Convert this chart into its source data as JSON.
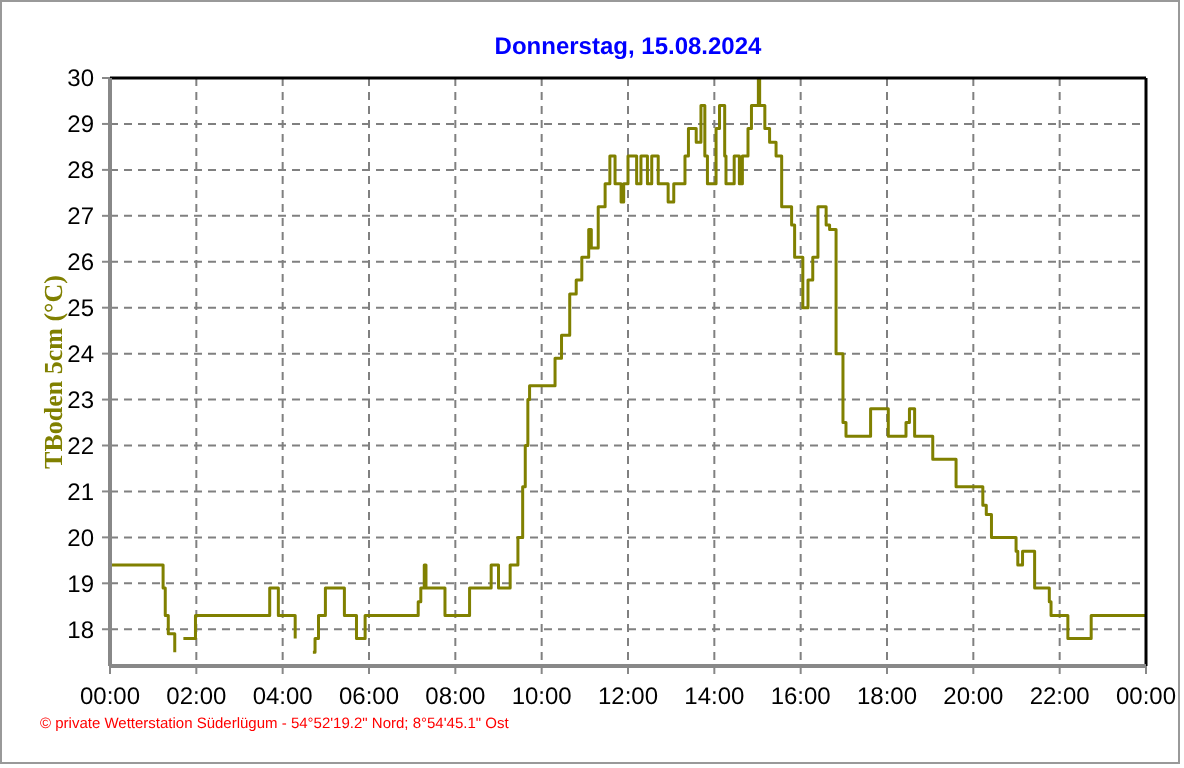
{
  "chart_data": {
    "type": "step",
    "title": "Donnerstag, 15.08.2024",
    "ylabel": "TBoden 5cm (°C)",
    "annotations": [
      "© private Wetterstation Süderlügum - 54°52'19.2\" Nord; 8°54'45.1\" Ost"
    ],
    "xlim": [
      0,
      24
    ],
    "xticks": [
      {
        "value": 0,
        "label": "00:00"
      },
      {
        "value": 2,
        "label": "02:00"
      },
      {
        "value": 4,
        "label": "04:00"
      },
      {
        "value": 6,
        "label": "06:00"
      },
      {
        "value": 8,
        "label": "08:00"
      },
      {
        "value": 10,
        "label": "10:00"
      },
      {
        "value": 12,
        "label": "12:00"
      },
      {
        "value": 14,
        "label": "14:00"
      },
      {
        "value": 16,
        "label": "16:00"
      },
      {
        "value": 18,
        "label": "18:00"
      },
      {
        "value": 20,
        "label": "20:00"
      },
      {
        "value": 22,
        "label": "22:00"
      },
      {
        "value": 24,
        "label": "00:00"
      }
    ],
    "ylim": [
      17.2,
      30
    ],
    "yticks": [
      18,
      19,
      20,
      21,
      22,
      23,
      24,
      25,
      26,
      27,
      28,
      29,
      30
    ],
    "grid": true,
    "line_style": "solid",
    "series": [
      {
        "color": "#808000",
        "x": [
          0,
          1.23,
          1.28,
          1.35,
          1.5,
          1.6,
          1.7,
          1.98,
          3.7,
          3.9,
          4.29,
          4.55,
          4.7,
          4.75,
          4.83,
          4.99,
          5.43,
          5.71,
          5.91,
          7.14,
          7.2,
          7.28,
          7.32,
          7.76,
          8.33,
          8.83,
          9.0,
          9.27,
          9.45,
          9.56,
          9.62,
          9.68,
          9.72,
          10.31,
          10.46,
          10.65,
          10.8,
          10.93,
          11.09,
          11.15,
          11.31,
          11.47,
          11.58,
          11.7,
          11.84,
          11.9,
          12.0,
          12.2,
          12.3,
          12.45,
          12.55,
          12.7,
          12.93,
          13.06,
          13.32,
          13.4,
          13.58,
          13.69,
          13.78,
          13.84,
          14.04,
          14.12,
          14.24,
          14.27,
          14.46,
          14.58,
          14.65,
          14.78,
          14.86,
          15.02,
          15.05,
          15.17,
          15.28,
          15.43,
          15.56,
          15.79,
          15.86,
          16.05,
          16.17,
          16.28,
          16.4,
          16.59,
          16.67,
          16.82,
          16.98,
          17.05,
          17.62,
          18.03,
          18.44,
          18.52,
          18.64,
          19.06,
          19.6,
          20.22,
          20.3,
          20.42,
          20.99,
          21.03,
          21.14,
          21.42,
          21.76,
          21.8,
          22.19,
          22.73,
          24
        ],
        "values": [
          19.4,
          18.9,
          18.3,
          17.9,
          17.5,
          null,
          17.8,
          18.3,
          18.9,
          18.3,
          17.8,
          null,
          17.5,
          17.8,
          18.3,
          18.9,
          18.3,
          17.8,
          18.3,
          18.6,
          18.9,
          19.4,
          18.9,
          18.3,
          18.9,
          19.4,
          18.9,
          19.4,
          20.0,
          21.1,
          22.0,
          23.0,
          23.3,
          23.9,
          24.4,
          25.3,
          25.6,
          26.1,
          26.7,
          26.3,
          27.2,
          27.7,
          28.3,
          27.7,
          27.3,
          27.7,
          28.3,
          27.7,
          28.3,
          27.7,
          28.3,
          27.7,
          27.3,
          27.7,
          28.3,
          28.9,
          28.6,
          29.4,
          28.3,
          27.7,
          28.9,
          29.4,
          28.3,
          27.7,
          28.3,
          27.7,
          28.3,
          28.9,
          29.4,
          30.0,
          29.4,
          28.9,
          28.6,
          28.3,
          27.2,
          26.8,
          26.1,
          25.0,
          25.6,
          26.1,
          27.2,
          26.8,
          26.7,
          24.0,
          22.5,
          22.2,
          22.8,
          22.2,
          22.5,
          22.8,
          22.2,
          21.7,
          21.1,
          20.7,
          20.5,
          20.0,
          19.7,
          19.4,
          19.7,
          18.9,
          18.6,
          18.3,
          17.8,
          18.3,
          18.3
        ]
      }
    ]
  }
}
